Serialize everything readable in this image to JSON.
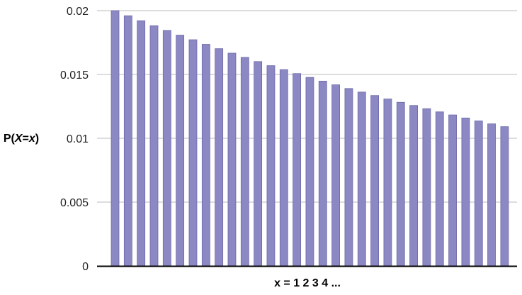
{
  "chart_data": {
    "type": "bar",
    "title": "",
    "xlabel": "x = 1 2 3 4 ...",
    "ylabel_parts": [
      "P(",
      "X",
      "=",
      "x",
      ")"
    ],
    "ylabel": "P(X=x)",
    "x": [
      1,
      2,
      3,
      4,
      5,
      6,
      7,
      8,
      9,
      10,
      11,
      12,
      13,
      14,
      15,
      16,
      17,
      18,
      19,
      20,
      21,
      22,
      23,
      24,
      25,
      26,
      27,
      28,
      29,
      30,
      31
    ],
    "values": [
      0.02,
      0.0196,
      0.01921,
      0.01882,
      0.01845,
      0.01808,
      0.01772,
      0.01736,
      0.01702,
      0.01667,
      0.01634,
      0.01601,
      0.01569,
      0.01538,
      0.01507,
      0.01477,
      0.01448,
      0.01419,
      0.0139,
      0.01362,
      0.01335,
      0.01308,
      0.01282,
      0.01257,
      0.01232,
      0.01207,
      0.01183,
      0.01159,
      0.01136,
      0.01113,
      0.01091
    ],
    "ylim": [
      0,
      0.02
    ],
    "yticks": [
      "0",
      "0.005",
      "0.01",
      "0.015",
      "0.02"
    ],
    "grid": true,
    "colors": {
      "bar": "#8b88c4",
      "bar_edge": "#6d69a8",
      "grid": "#bbbbbb",
      "axis": "#000000"
    }
  }
}
